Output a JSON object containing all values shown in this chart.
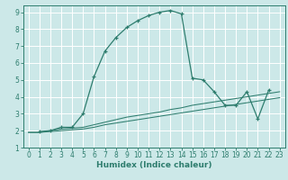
{
  "xlabel": "Humidex (Indice chaleur)",
  "background_color": "#cce8e8",
  "grid_color": "#ffffff",
  "line_color": "#2e7d6e",
  "xlim": [
    -0.5,
    23.5
  ],
  "ylim": [
    1,
    9.4
  ],
  "xticks": [
    0,
    1,
    2,
    3,
    4,
    5,
    6,
    7,
    8,
    9,
    10,
    11,
    12,
    13,
    14,
    15,
    16,
    17,
    18,
    19,
    20,
    21,
    22,
    23
  ],
  "yticks": [
    1,
    2,
    3,
    4,
    5,
    6,
    7,
    8,
    9
  ],
  "series_main_x": [
    1,
    2,
    3,
    4,
    5,
    6,
    7,
    8,
    9,
    10,
    11,
    12,
    13,
    14,
    15,
    16,
    17,
    18,
    19,
    20,
    21,
    22
  ],
  "series_main_y": [
    1.95,
    2.0,
    2.2,
    2.2,
    3.0,
    5.2,
    6.7,
    7.5,
    8.1,
    8.5,
    8.8,
    9.0,
    9.1,
    8.9,
    5.1,
    5.0,
    4.3,
    3.5,
    3.5,
    4.3,
    2.7,
    4.4
  ],
  "series_l1_x": [
    0,
    1,
    2,
    3,
    4,
    5,
    6,
    7,
    8,
    9,
    10,
    11,
    12,
    13,
    14,
    15,
    16,
    17,
    18,
    19,
    20,
    21,
    22,
    23
  ],
  "series_l1_y": [
    1.9,
    1.9,
    2.0,
    2.1,
    2.15,
    2.2,
    2.35,
    2.5,
    2.65,
    2.8,
    2.9,
    3.0,
    3.1,
    3.25,
    3.35,
    3.5,
    3.6,
    3.7,
    3.8,
    3.9,
    4.0,
    4.1,
    4.2,
    4.3
  ],
  "series_l2_x": [
    0,
    1,
    2,
    3,
    4,
    5,
    6,
    7,
    8,
    9,
    10,
    11,
    12,
    13,
    14,
    15,
    16,
    17,
    18,
    19,
    20,
    21,
    22,
    23
  ],
  "series_l2_y": [
    1.9,
    1.9,
    1.95,
    2.0,
    2.05,
    2.1,
    2.2,
    2.35,
    2.45,
    2.55,
    2.65,
    2.75,
    2.85,
    2.95,
    3.05,
    3.15,
    3.25,
    3.35,
    3.45,
    3.55,
    3.65,
    3.75,
    3.85,
    3.95
  ],
  "tick_fontsize": 5.5,
  "xlabel_fontsize": 6.5
}
